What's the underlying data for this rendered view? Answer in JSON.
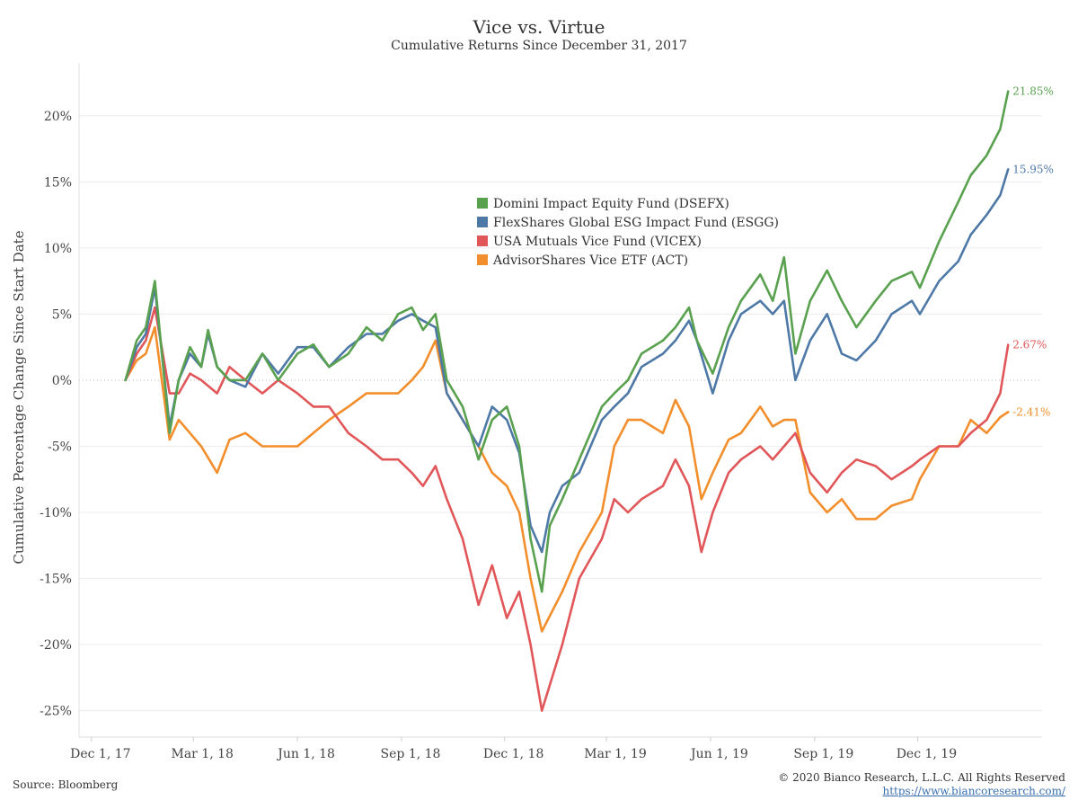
{
  "header": {
    "title": "Vice vs. Virtue",
    "subtitle": "Cumulative Returns Since December 31, 2017"
  },
  "footer": {
    "source": "Source: Bloomberg",
    "copyright": "© 2020 Bianco Research, L.L.C. All Rights Reserved",
    "url": "https://www.biancoresearch.com/"
  },
  "colors": {
    "DSEFX": "#59a14f",
    "ESGG": "#4e79a7",
    "VICEX": "#e15759",
    "ACT": "#f28e2b",
    "gridline": "#ececec",
    "zeroline": "#bbbbbb"
  },
  "chart_data": {
    "type": "line",
    "title": "Vice vs. Virtue",
    "subtitle": "Cumulative Returns Since December 31, 2017",
    "ylabel": "Cumulative Percentage Change Since Start Date",
    "xlabel": "",
    "ylim": [
      -27,
      24
    ],
    "xlim": [
      "2017-11-20",
      "2020-03-20"
    ],
    "x_ticks": [
      {
        "date": "2017-12-01",
        "label": "Dec 1, 17"
      },
      {
        "date": "2018-03-01",
        "label": "Mar 1, 18"
      },
      {
        "date": "2018-06-01",
        "label": "Jun 1, 18"
      },
      {
        "date": "2018-09-01",
        "label": "Sep 1, 18"
      },
      {
        "date": "2018-12-01",
        "label": "Dec 1, 18"
      },
      {
        "date": "2019-03-01",
        "label": "Mar 1, 19"
      },
      {
        "date": "2019-06-01",
        "label": "Jun 1, 19"
      },
      {
        "date": "2019-09-01",
        "label": "Sep 1, 19"
      },
      {
        "date": "2019-12-01",
        "label": "Dec 1, 19"
      }
    ],
    "y_ticks": [
      {
        "value": 20,
        "label": "20%"
      },
      {
        "value": 15,
        "label": "15%"
      },
      {
        "value": 10,
        "label": "10%"
      },
      {
        "value": 5,
        "label": "5%"
      },
      {
        "value": 0,
        "label": "0%"
      },
      {
        "value": -5,
        "label": "-5%"
      },
      {
        "value": -10,
        "label": "-10%"
      },
      {
        "value": -15,
        "label": "-15%"
      },
      {
        "value": -20,
        "label": "-20%"
      },
      {
        "value": -25,
        "label": "-25%"
      }
    ],
    "grid": true,
    "legend_position": "center",
    "series": [
      {
        "name": "Domini Impact Equity Fund (DSEFX)",
        "key": "DSEFX",
        "end_label": "21.85%",
        "x": [
          "2017-12-31",
          "2018-01-10",
          "2018-01-18",
          "2018-01-26",
          "2018-02-08",
          "2018-02-16",
          "2018-02-26",
          "2018-03-08",
          "2018-03-14",
          "2018-03-22",
          "2018-04-02",
          "2018-04-16",
          "2018-05-01",
          "2018-05-15",
          "2018-06-01",
          "2018-06-15",
          "2018-06-29",
          "2018-07-16",
          "2018-08-01",
          "2018-08-15",
          "2018-08-29",
          "2018-09-10",
          "2018-09-20",
          "2018-10-01",
          "2018-10-11",
          "2018-10-25",
          "2018-11-08",
          "2018-11-20",
          "2018-12-03",
          "2018-12-14",
          "2018-12-24",
          "2019-01-03",
          "2019-01-10",
          "2019-01-21",
          "2019-02-05",
          "2019-02-25",
          "2019-03-08",
          "2019-03-20",
          "2019-04-01",
          "2019-04-20",
          "2019-05-01",
          "2019-05-13",
          "2019-05-20",
          "2019-06-03",
          "2019-06-17",
          "2019-06-28",
          "2019-07-15",
          "2019-07-26",
          "2019-08-05",
          "2019-08-15",
          "2019-08-28",
          "2019-09-12",
          "2019-09-25",
          "2019-10-08",
          "2019-10-25",
          "2019-11-08",
          "2019-11-26",
          "2019-12-03",
          "2019-12-20",
          "2020-01-06",
          "2020-01-17",
          "2020-01-31",
          "2020-02-12",
          "2020-02-19"
        ],
        "values": [
          0,
          3,
          4,
          7.5,
          -4,
          0,
          2.5,
          1,
          3.8,
          1,
          0,
          0,
          2,
          0,
          2,
          2.7,
          1,
          2,
          4,
          3,
          5,
          5.5,
          3.8,
          5,
          0,
          -2,
          -6,
          -3,
          -2,
          -5,
          -12,
          -16,
          -11,
          -9,
          -6,
          -2,
          -1,
          0,
          2,
          3,
          4,
          5.5,
          3,
          0.5,
          4,
          6,
          8,
          6,
          9.3,
          2,
          6,
          8.3,
          6,
          4,
          6,
          7.5,
          8.2,
          7,
          10.5,
          13.5,
          15.5,
          17,
          19,
          21.85
        ]
      },
      {
        "name": "FlexShares Global ESG Impact Fund (ESGG)",
        "key": "ESGG",
        "end_label": "15.95%",
        "x": [
          "2017-12-31",
          "2018-01-10",
          "2018-01-18",
          "2018-01-26",
          "2018-02-08",
          "2018-02-16",
          "2018-02-26",
          "2018-03-08",
          "2018-03-14",
          "2018-03-22",
          "2018-04-02",
          "2018-04-16",
          "2018-05-01",
          "2018-05-15",
          "2018-06-01",
          "2018-06-15",
          "2018-06-29",
          "2018-07-16",
          "2018-08-01",
          "2018-08-15",
          "2018-08-29",
          "2018-09-10",
          "2018-09-20",
          "2018-10-01",
          "2018-10-11",
          "2018-10-25",
          "2018-11-08",
          "2018-11-20",
          "2018-12-03",
          "2018-12-14",
          "2018-12-24",
          "2019-01-03",
          "2019-01-10",
          "2019-01-21",
          "2019-02-05",
          "2019-02-25",
          "2019-03-08",
          "2019-03-20",
          "2019-04-01",
          "2019-04-20",
          "2019-05-01",
          "2019-05-13",
          "2019-05-20",
          "2019-06-03",
          "2019-06-17",
          "2019-06-28",
          "2019-07-15",
          "2019-07-26",
          "2019-08-05",
          "2019-08-15",
          "2019-08-28",
          "2019-09-12",
          "2019-09-25",
          "2019-10-08",
          "2019-10-25",
          "2019-11-08",
          "2019-11-26",
          "2019-12-03",
          "2019-12-20",
          "2020-01-06",
          "2020-01-17",
          "2020-01-31",
          "2020-02-12",
          "2020-02-19"
        ],
        "values": [
          0,
          2.5,
          3.5,
          7,
          -3.5,
          0,
          2,
          1,
          3.5,
          1,
          0,
          -0.5,
          2,
          0.5,
          2.5,
          2.5,
          1,
          2.5,
          3.5,
          3.5,
          4.5,
          5,
          4.5,
          4,
          -1,
          -3,
          -5,
          -2,
          -3,
          -5.5,
          -11,
          -13,
          -10,
          -8,
          -7,
          -3,
          -2,
          -1,
          1,
          2,
          3,
          4.5,
          3,
          -1,
          3,
          5,
          6,
          5,
          6,
          0,
          3,
          5,
          2,
          1.5,
          3,
          5,
          6,
          5,
          7.5,
          9,
          11,
          12.5,
          14,
          15.95
        ]
      },
      {
        "name": "USA Mutuals Vice Fund (VICEX)",
        "key": "VICEX",
        "end_label": "2.67%",
        "x": [
          "2017-12-31",
          "2018-01-10",
          "2018-01-18",
          "2018-01-26",
          "2018-02-08",
          "2018-02-16",
          "2018-02-26",
          "2018-03-08",
          "2018-03-22",
          "2018-04-02",
          "2018-04-16",
          "2018-05-01",
          "2018-05-15",
          "2018-06-01",
          "2018-06-15",
          "2018-06-29",
          "2018-07-16",
          "2018-08-01",
          "2018-08-15",
          "2018-08-29",
          "2018-09-10",
          "2018-09-20",
          "2018-10-01",
          "2018-10-11",
          "2018-10-25",
          "2018-11-08",
          "2018-11-20",
          "2018-12-03",
          "2018-12-14",
          "2018-12-24",
          "2019-01-03",
          "2019-01-21",
          "2019-02-05",
          "2019-02-25",
          "2019-03-08",
          "2019-03-20",
          "2019-04-01",
          "2019-04-20",
          "2019-05-01",
          "2019-05-13",
          "2019-05-24",
          "2019-06-03",
          "2019-06-17",
          "2019-06-28",
          "2019-07-15",
          "2019-07-26",
          "2019-08-05",
          "2019-08-15",
          "2019-08-28",
          "2019-09-12",
          "2019-09-25",
          "2019-10-08",
          "2019-10-25",
          "2019-11-08",
          "2019-11-26",
          "2019-12-03",
          "2019-12-20",
          "2020-01-06",
          "2020-01-17",
          "2020-01-31",
          "2020-02-12",
          "2020-02-19"
        ],
        "values": [
          0,
          2,
          3,
          5.5,
          -1,
          -1,
          0.5,
          0,
          -1,
          1,
          0,
          -1,
          0,
          -1,
          -2,
          -2,
          -4,
          -5,
          -6,
          -6,
          -7,
          -8,
          -6.5,
          -9,
          -12,
          -17,
          -14,
          -18,
          -16,
          -20,
          -25,
          -20,
          -15,
          -12,
          -9,
          -10,
          -9,
          -8,
          -6,
          -8,
          -13,
          -10,
          -7,
          -6,
          -5,
          -6,
          -5,
          -4,
          -7,
          -8.5,
          -7,
          -6,
          -6.5,
          -7.5,
          -6.5,
          -6,
          -5,
          -5,
          -4,
          -3,
          -1,
          2.67
        ]
      },
      {
        "name": "AdvisorShares Vice ETF (ACT)",
        "key": "ACT",
        "end_label": "-2.41%",
        "x": [
          "2017-12-31",
          "2018-01-10",
          "2018-01-18",
          "2018-01-26",
          "2018-02-08",
          "2018-02-16",
          "2018-02-26",
          "2018-03-08",
          "2018-03-22",
          "2018-04-02",
          "2018-04-16",
          "2018-05-01",
          "2018-05-15",
          "2018-06-01",
          "2018-06-15",
          "2018-06-29",
          "2018-07-16",
          "2018-08-01",
          "2018-08-15",
          "2018-08-29",
          "2018-09-10",
          "2018-09-20",
          "2018-10-01",
          "2018-10-11",
          "2018-10-25",
          "2018-11-08",
          "2018-11-20",
          "2018-12-03",
          "2018-12-14",
          "2018-12-24",
          "2019-01-03",
          "2019-01-21",
          "2019-02-05",
          "2019-02-25",
          "2019-03-08",
          "2019-03-20",
          "2019-04-01",
          "2019-04-20",
          "2019-05-01",
          "2019-05-13",
          "2019-05-24",
          "2019-06-03",
          "2019-06-17",
          "2019-06-28",
          "2019-07-15",
          "2019-07-26",
          "2019-08-05",
          "2019-08-15",
          "2019-08-28",
          "2019-09-12",
          "2019-09-25",
          "2019-10-08",
          "2019-10-25",
          "2019-11-08",
          "2019-11-26",
          "2019-12-03",
          "2019-12-20",
          "2020-01-06",
          "2020-01-17",
          "2020-01-31",
          "2020-02-12",
          "2020-02-19"
        ],
        "values": [
          0,
          1.5,
          2,
          4,
          -4.5,
          -3,
          -4,
          -5,
          -7,
          -4.5,
          -4,
          -5,
          -5,
          -5,
          -4,
          -3,
          -2,
          -1,
          -1,
          -1,
          0,
          1,
          3,
          -1,
          -3,
          -5,
          -7,
          -8,
          -10,
          -15,
          -19,
          -16,
          -13,
          -10,
          -5,
          -3,
          -3,
          -4,
          -1.5,
          -3.5,
          -9,
          -7,
          -4.5,
          -4,
          -2,
          -3.5,
          -3,
          -3,
          -8.5,
          -10,
          -9,
          -10.5,
          -10.5,
          -9.5,
          -9,
          -7.5,
          -5,
          -5,
          -3,
          -4,
          -2.8,
          -2.41
        ]
      }
    ]
  }
}
